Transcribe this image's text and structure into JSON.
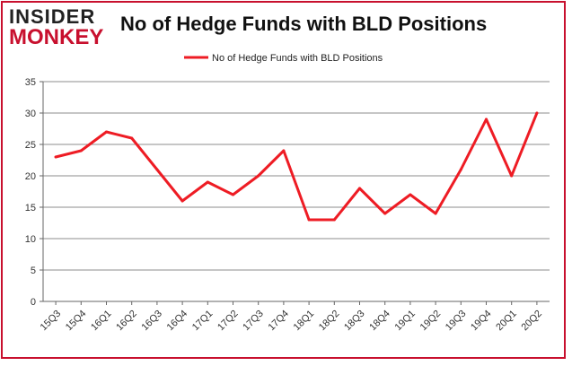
{
  "brand": {
    "logo_top": "INSIDER",
    "logo_bottom": "MONKEY"
  },
  "chart_data": {
    "type": "line",
    "title": "No of Hedge Funds with BLD Positions",
    "xlabel": "",
    "ylabel": "",
    "ylim": [
      0,
      35
    ],
    "yticks": [
      0,
      5,
      10,
      15,
      20,
      25,
      30,
      35
    ],
    "grid": "horizontal",
    "legend_position": "top-center",
    "categories": [
      "15Q3",
      "15Q4",
      "16Q1",
      "16Q2",
      "16Q3",
      "16Q4",
      "17Q1",
      "17Q2",
      "17Q3",
      "17Q4",
      "18Q1",
      "18Q2",
      "18Q3",
      "18Q4",
      "19Q1",
      "19Q2",
      "19Q3",
      "19Q4",
      "20Q1",
      "20Q2"
    ],
    "series": [
      {
        "name": "No of Hedge Funds with BLD Positions",
        "color": "#ee1c24",
        "values": [
          23,
          24,
          27,
          26,
          21,
          16,
          19,
          17,
          20,
          24,
          13,
          13,
          18,
          14,
          17,
          14,
          21,
          29,
          20,
          30
        ]
      }
    ]
  }
}
